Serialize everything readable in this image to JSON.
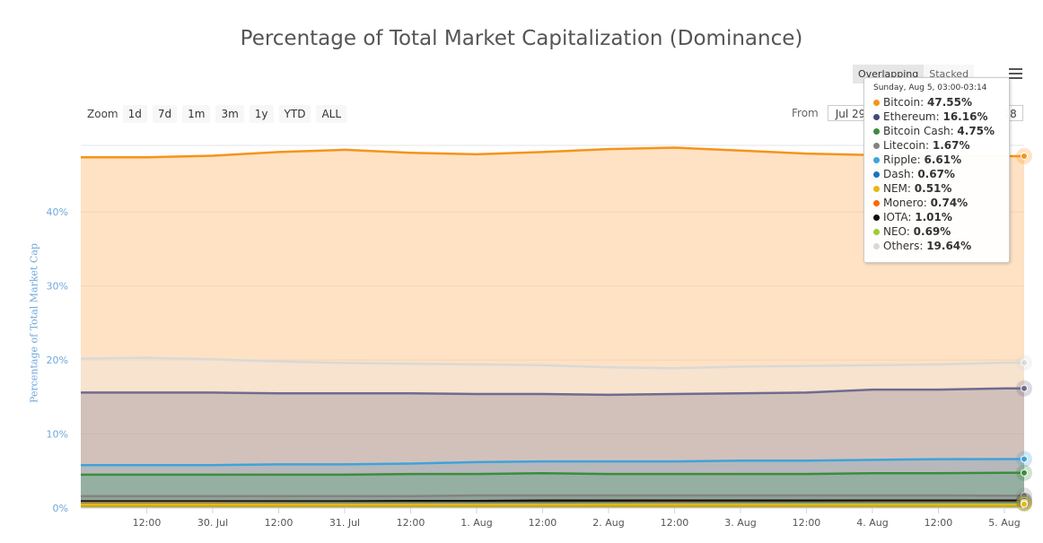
{
  "title": "Percentage of Total Market Capitalization (Dominance)",
  "zoom": {
    "label": "Zoom",
    "buttons": [
      "1d",
      "7d",
      "1m",
      "3m",
      "1y",
      "YTD",
      "ALL"
    ]
  },
  "range": {
    "label": "From",
    "from_value": "Jul 29",
    "to_fragment": "18"
  },
  "modes": [
    "Overlapping",
    "Stacked"
  ],
  "tooltip": {
    "header": "Sunday, Aug 5, 03:00-03:14",
    "rows": [
      {
        "name": "Bitcoin",
        "value": "47.55%",
        "color": "#f7931a"
      },
      {
        "name": "Ethereum",
        "value": "16.16%",
        "color": "#454a75"
      },
      {
        "name": "Bitcoin Cash",
        "value": "4.75%",
        "color": "#3c8c3c"
      },
      {
        "name": "Litecoin",
        "value": "1.67%",
        "color": "#838383"
      },
      {
        "name": "Ripple",
        "value": "6.61%",
        "color": "#3ea3dc"
      },
      {
        "name": "Dash",
        "value": "0.67%",
        "color": "#1c75bc"
      },
      {
        "name": "NEM",
        "value": "0.51%",
        "color": "#e8b90c"
      },
      {
        "name": "Monero",
        "value": "0.74%",
        "color": "#ff6600"
      },
      {
        "name": "IOTA",
        "value": "1.01%",
        "color": "#111111"
      },
      {
        "name": "NEO",
        "value": "0.69%",
        "color": "#9acd32"
      },
      {
        "name": "Others",
        "value": "19.64%",
        "color": "#d9d9d9"
      }
    ]
  },
  "chart_data": {
    "type": "area",
    "ylabel": "Percentage of Total Market Cap",
    "ylim": [
      0,
      49
    ],
    "y_ticks": [
      0,
      10,
      20,
      30,
      40
    ],
    "y_tick_labels": [
      "0%",
      "10%",
      "20%",
      "30%",
      "40%"
    ],
    "xlim": [
      0,
      7.15
    ],
    "x_ticks": [
      0.5,
      1,
      1.5,
      2,
      2.5,
      3,
      3.5,
      4,
      4.5,
      5,
      5.5,
      6,
      6.5,
      7
    ],
    "x_tick_labels": [
      "12:00",
      "30. Jul",
      "12:00",
      "31. Jul",
      "12:00",
      "1. Aug",
      "12:00",
      "2. Aug",
      "12:00",
      "3. Aug",
      "12:00",
      "4. Aug",
      "12:00",
      "5. Aug"
    ],
    "x": [
      0,
      0.5,
      1,
      1.5,
      2,
      2.5,
      3,
      3.5,
      4,
      4.5,
      5,
      5.5,
      6,
      6.5,
      7,
      7.15
    ],
    "grid": true,
    "series": [
      {
        "name": "Bitcoin",
        "color": "#f7931a",
        "fill": "rgba(252,191,123,0.45)",
        "values": [
          47.4,
          47.4,
          47.6,
          48.1,
          48.4,
          48.0,
          47.8,
          48.1,
          48.5,
          48.7,
          48.3,
          47.9,
          47.7,
          47.6,
          47.55,
          47.55
        ]
      },
      {
        "name": "Others",
        "color": "#d9d9d9",
        "fill": "rgba(235,230,225,0.35)",
        "values": [
          20.2,
          20.3,
          20.1,
          19.8,
          19.6,
          19.5,
          19.4,
          19.3,
          19.0,
          18.9,
          19.1,
          19.2,
          19.3,
          19.4,
          19.64,
          19.64
        ]
      },
      {
        "name": "Ethereum",
        "color": "#706b8e",
        "fill": "rgba(140,130,150,0.35)",
        "values": [
          15.6,
          15.6,
          15.6,
          15.5,
          15.5,
          15.5,
          15.4,
          15.4,
          15.3,
          15.4,
          15.5,
          15.6,
          16.0,
          16.0,
          16.16,
          16.16
        ]
      },
      {
        "name": "Ripple",
        "color": "#3ea3dc",
        "fill": "rgba(100,160,190,0.25)",
        "values": [
          5.8,
          5.8,
          5.8,
          5.9,
          5.9,
          6.0,
          6.2,
          6.3,
          6.3,
          6.3,
          6.4,
          6.4,
          6.5,
          6.6,
          6.61,
          6.61
        ]
      },
      {
        "name": "Bitcoin Cash",
        "color": "#3c8c3c",
        "fill": "rgba(90,160,120,0.35)",
        "values": [
          4.5,
          4.5,
          4.5,
          4.5,
          4.5,
          4.6,
          4.6,
          4.7,
          4.6,
          4.6,
          4.6,
          4.6,
          4.7,
          4.7,
          4.75,
          4.75
        ]
      },
      {
        "name": "Litecoin",
        "color": "#838383",
        "fill": "rgba(130,130,130,0.3)",
        "values": [
          1.6,
          1.6,
          1.6,
          1.6,
          1.6,
          1.6,
          1.7,
          1.7,
          1.7,
          1.7,
          1.7,
          1.7,
          1.7,
          1.7,
          1.67,
          1.67
        ]
      },
      {
        "name": "IOTA",
        "color": "#111111",
        "fill": "rgba(60,60,60,0.3)",
        "values": [
          0.9,
          0.9,
          0.9,
          0.9,
          0.9,
          0.95,
          0.95,
          1.0,
          1.0,
          1.0,
          1.0,
          1.0,
          1.0,
          1.0,
          1.01,
          1.01
        ]
      },
      {
        "name": "Monero",
        "color": "#ff6600",
        "fill": "rgba(255,140,60,0.3)",
        "values": [
          0.7,
          0.7,
          0.7,
          0.7,
          0.7,
          0.7,
          0.7,
          0.72,
          0.72,
          0.73,
          0.73,
          0.73,
          0.74,
          0.74,
          0.74,
          0.74
        ]
      },
      {
        "name": "NEO",
        "color": "#9acd32",
        "fill": "rgba(180,200,60,0.5)",
        "values": [
          0.6,
          0.6,
          0.6,
          0.6,
          0.6,
          0.62,
          0.63,
          0.64,
          0.65,
          0.66,
          0.67,
          0.68,
          0.69,
          0.69,
          0.69,
          0.69
        ]
      },
      {
        "name": "Dash",
        "color": "#1c75bc",
        "fill": "rgba(40,110,180,0.3)",
        "values": [
          0.6,
          0.6,
          0.6,
          0.62,
          0.63,
          0.64,
          0.65,
          0.65,
          0.66,
          0.66,
          0.67,
          0.67,
          0.67,
          0.67,
          0.67,
          0.67
        ]
      },
      {
        "name": "NEM",
        "color": "#e8b90c",
        "fill": "rgba(232,185,12,0.6)",
        "values": [
          0.5,
          0.5,
          0.5,
          0.5,
          0.5,
          0.5,
          0.5,
          0.5,
          0.51,
          0.51,
          0.51,
          0.51,
          0.51,
          0.51,
          0.51,
          0.51
        ]
      }
    ]
  }
}
